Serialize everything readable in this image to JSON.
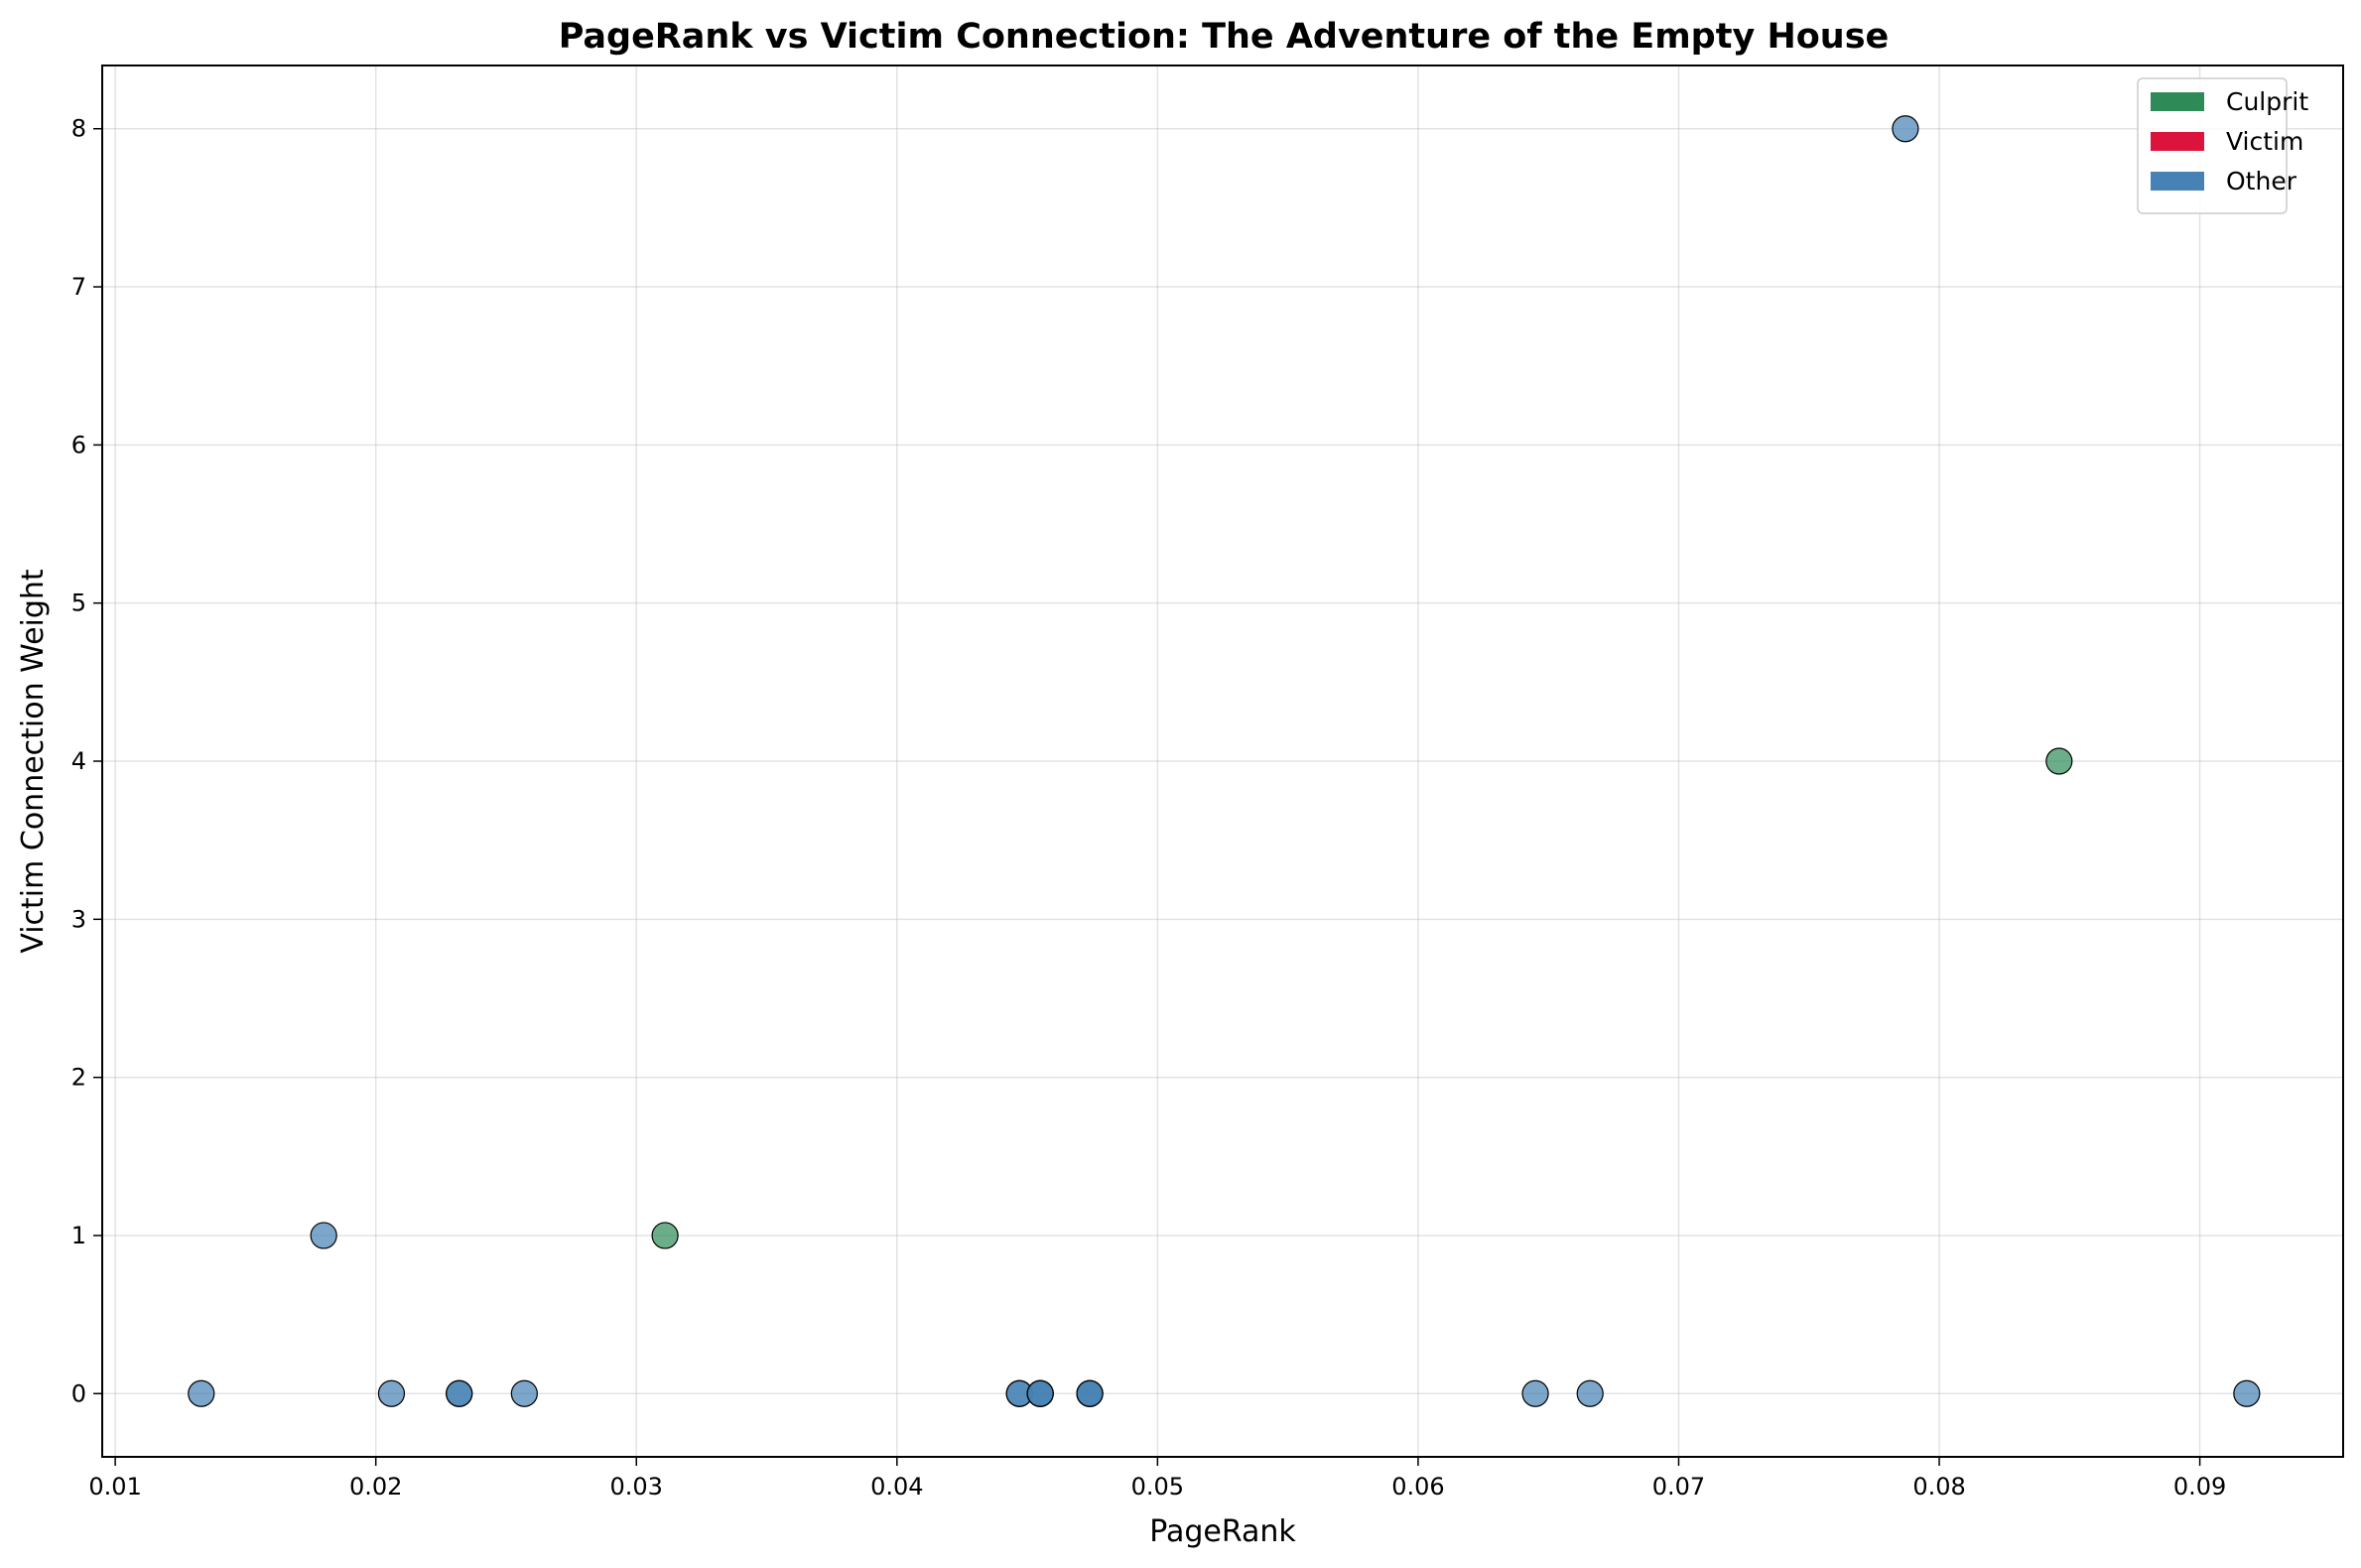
{
  "chart_data": {
    "type": "scatter",
    "title": "PageRank vs Victim Connection: The Adventure of the Empty House",
    "xlabel": "PageRank",
    "ylabel": "Victim Connection Weight",
    "xlim": [
      0.0095,
      0.0955
    ],
    "ylim": [
      -0.4,
      8.4
    ],
    "xticks": [
      "0.01",
      "0.02",
      "0.03",
      "0.04",
      "0.05",
      "0.06",
      "0.07",
      "0.08",
      "0.09"
    ],
    "xtick_values": [
      0.01,
      0.02,
      0.03,
      0.04,
      0.05,
      0.06,
      0.07,
      0.08,
      0.09
    ],
    "yticks": [
      "0",
      "1",
      "2",
      "3",
      "4",
      "5",
      "6",
      "7",
      "8"
    ],
    "ytick_values": [
      0,
      1,
      2,
      3,
      4,
      5,
      6,
      7,
      8
    ],
    "grid": true,
    "legend_position": "top-right",
    "legend": [
      {
        "label": "Culprit",
        "color": "#2e8b57"
      },
      {
        "label": "Victim",
        "color": "#dc143c"
      },
      {
        "label": "Other",
        "color": "#4682b4"
      }
    ],
    "series": [
      {
        "name": "Culprit",
        "color": "#2e8b57",
        "points": [
          {
            "x": 0.0311,
            "y": 1
          },
          {
            "x": 0.0846,
            "y": 4
          }
        ]
      },
      {
        "name": "Victim",
        "color": "#dc143c",
        "points": []
      },
      {
        "name": "Other",
        "color": "#4682b4",
        "points": [
          {
            "x": 0.0133,
            "y": 0
          },
          {
            "x": 0.018,
            "y": 1
          },
          {
            "x": 0.0206,
            "y": 0
          },
          {
            "x": 0.0232,
            "y": 0
          },
          {
            "x": 0.0232,
            "y": 0
          },
          {
            "x": 0.0257,
            "y": 0
          },
          {
            "x": 0.0447,
            "y": 0
          },
          {
            "x": 0.0447,
            "y": 0
          },
          {
            "x": 0.0455,
            "y": 0
          },
          {
            "x": 0.0455,
            "y": 0
          },
          {
            "x": 0.0455,
            "y": 0
          },
          {
            "x": 0.0474,
            "y": 0
          },
          {
            "x": 0.0474,
            "y": 0
          },
          {
            "x": 0.0474,
            "y": 0
          },
          {
            "x": 0.0645,
            "y": 0
          },
          {
            "x": 0.0666,
            "y": 0
          },
          {
            "x": 0.0787,
            "y": 8
          },
          {
            "x": 0.0918,
            "y": 0
          }
        ]
      }
    ]
  }
}
